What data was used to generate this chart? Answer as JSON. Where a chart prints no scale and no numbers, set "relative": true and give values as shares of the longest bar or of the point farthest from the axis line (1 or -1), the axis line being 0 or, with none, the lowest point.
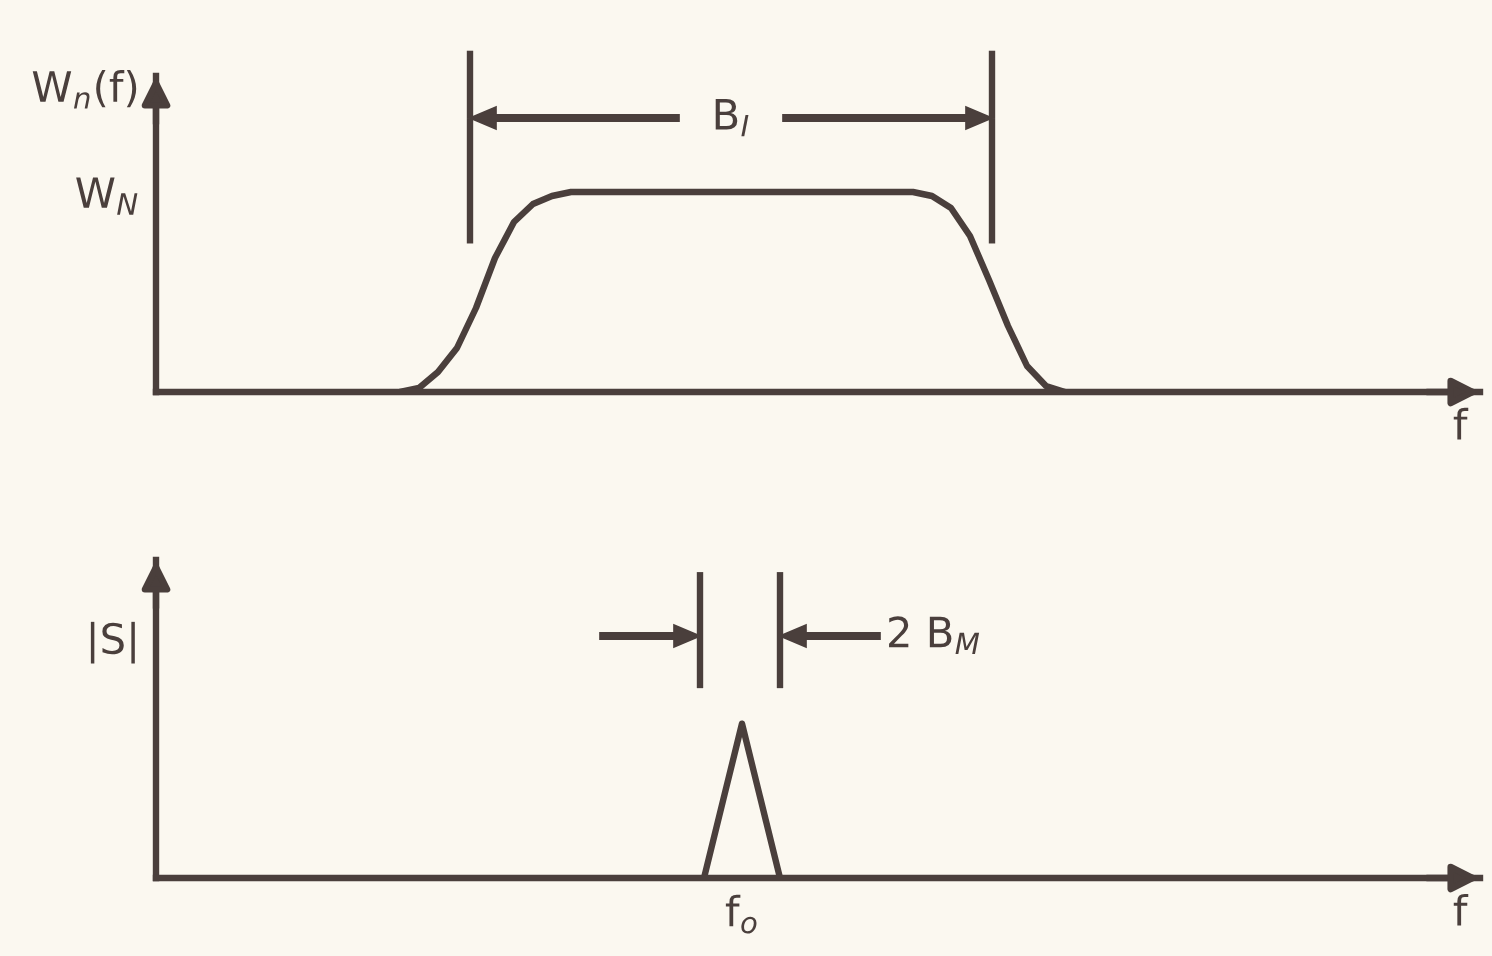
{
  "chart_data": [
    {
      "type": "line",
      "relative": true,
      "ylabel": "W$_{n}$(f)",
      "xlabel": "f",
      "color": "#4a3f3c",
      "categories": [
        null,
        null,
        null,
        null,
        null,
        null,
        null,
        null,
        null,
        null,
        null,
        null,
        null,
        null,
        null,
        null,
        null,
        null,
        null,
        null,
        null,
        null,
        null,
        null,
        null,
        null,
        null,
        null,
        null,
        null,
        null,
        null,
        null,
        null,
        null,
        null,
        null,
        null,
        null,
        null,
        null,
        null,
        null,
        null,
        null,
        null,
        null,
        null,
        null,
        null,
        null,
        null,
        null,
        null,
        null,
        null,
        null,
        null,
        null,
        null,
        null,
        null,
        null,
        null,
        null,
        null,
        null,
        null,
        null
      ],
      "values": [
        null,
        null,
        null,
        null,
        null,
        null,
        null,
        null,
        null,
        null,
        null,
        null,
        0,
        0.02,
        0.1,
        0.22,
        0.42,
        0.67,
        0.85,
        0.94,
        0.98,
        1,
        1,
        1,
        1,
        1,
        1,
        1,
        1,
        1,
        1,
        1,
        1,
        1,
        1,
        1,
        1,
        1,
        1,
        1,
        0.98,
        0.92,
        0.78,
        0.56,
        0.33,
        0.13,
        0.03,
        0,
        null,
        null,
        null,
        null,
        null,
        null,
        null,
        null,
        null,
        null,
        null,
        null,
        null,
        null,
        null,
        null,
        null,
        null,
        null,
        null,
        null
      ],
      "annotations": [
        "W$_{N}$",
        "B$_{I}$"
      ]
    },
    {
      "type": "line",
      "relative": true,
      "ylabel": "|S|",
      "xlabel": "f",
      "color": "#4a3f3c",
      "categories": [
        null,
        null,
        null,
        null,
        null,
        null,
        null,
        null,
        null,
        null,
        null,
        null,
        null,
        null,
        null,
        null,
        null,
        null,
        null,
        null,
        null,
        null,
        null,
        null,
        null,
        null,
        null,
        null,
        null,
        null,
        null,
        null,
        null,
        null,
        null,
        null,
        null,
        null,
        null,
        null,
        null,
        null,
        null,
        null,
        null,
        null,
        null,
        null,
        null,
        null,
        null,
        null,
        null,
        null,
        null,
        null,
        null,
        null,
        null,
        null,
        null,
        null,
        null,
        null,
        null,
        null,
        null,
        null,
        null
      ],
      "values": [
        null,
        null,
        null,
        null,
        null,
        null,
        null,
        null,
        null,
        null,
        null,
        null,
        null,
        null,
        null,
        null,
        null,
        null,
        null,
        null,
        null,
        null,
        null,
        null,
        null,
        null,
        null,
        null,
        0,
        0.5,
        1,
        0.5,
        0,
        null,
        null,
        null,
        null,
        null,
        null,
        null,
        null,
        null,
        null,
        null,
        null,
        null,
        null,
        null,
        null,
        null,
        null,
        null,
        null,
        null,
        null,
        null,
        null,
        null,
        null,
        null,
        null,
        null,
        null,
        null,
        null,
        null,
        null,
        null,
        null
      ],
      "annotations": [
        "2 B$_{M}$",
        "f$_{o}$"
      ]
    }
  ]
}
